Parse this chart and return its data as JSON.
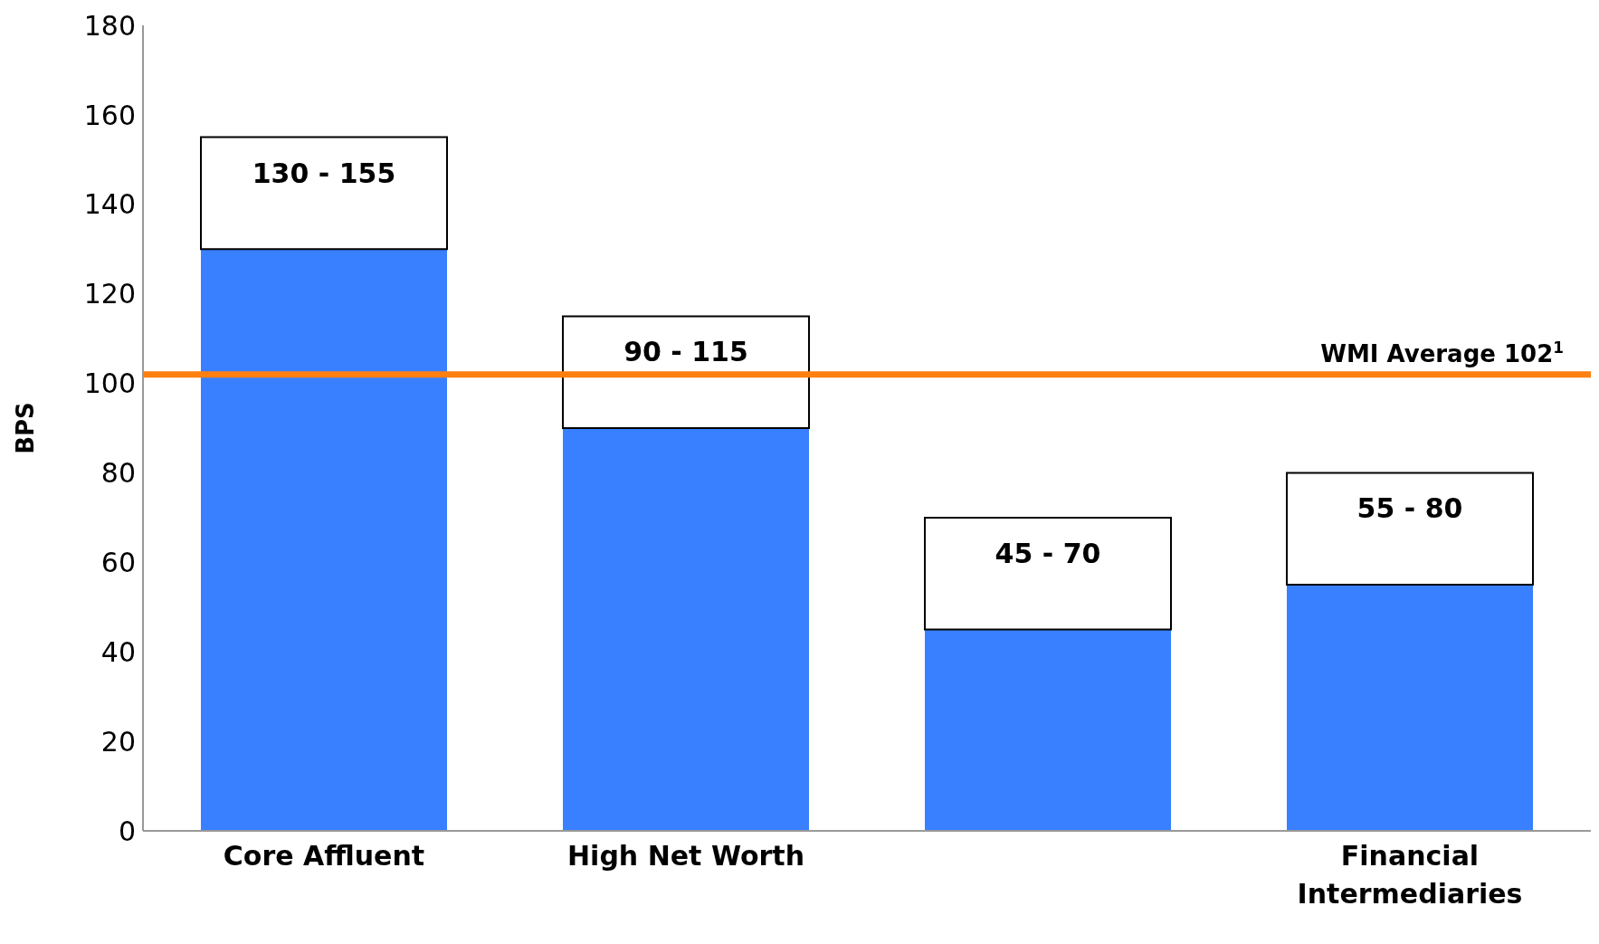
{
  "chart_data": {
    "type": "bar",
    "stacked": true,
    "ylabel": "BPS",
    "categories": [
      "Core Affluent",
      "High Net Worth",
      null,
      "Financial Intermediaries"
    ],
    "series": [
      {
        "color": "#3880ff",
        "values": [
          130,
          90,
          45,
          55
        ]
      },
      {
        "color": "#ffffff",
        "values": [
          25,
          25,
          25,
          25
        ]
      }
    ],
    "annotations": [
      "130 - 155",
      "90 - 115",
      "45 - 70",
      "55 - 80"
    ],
    "ylim": [
      0,
      180
    ],
    "yticks": [
      0,
      20,
      40,
      60,
      80,
      100,
      120,
      140,
      160,
      180
    ],
    "grid": false,
    "legend": false,
    "ref_lines": [
      {
        "axis": "y",
        "value": 102,
        "label": "WMI Average 102$^{1}$",
        "color": "#ff7f11"
      }
    ]
  }
}
